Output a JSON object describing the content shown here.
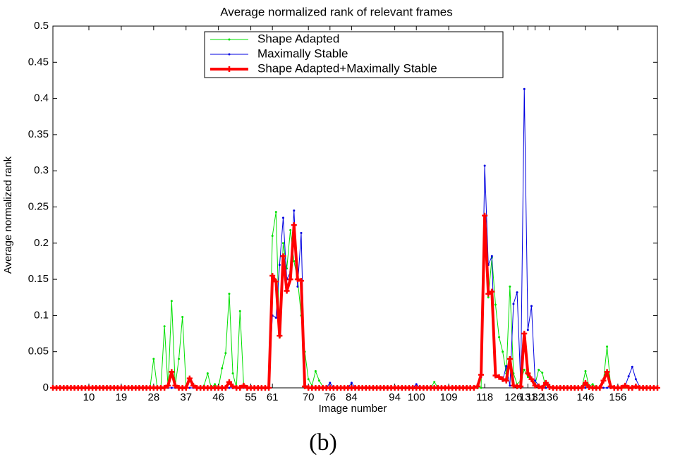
{
  "chart_data": {
    "type": "line",
    "title": "Average normalized rank of relevant frames",
    "xlabel": "Image number",
    "ylabel": "Average normalized rank",
    "caption": "(b)",
    "legend": "upper center",
    "x": [
      0,
      1,
      2,
      3,
      4,
      5,
      6,
      7,
      8,
      9,
      10,
      11,
      12,
      13,
      14,
      15,
      16,
      17,
      18,
      19,
      20,
      21,
      22,
      23,
      24,
      25,
      26,
      27,
      28,
      29,
      30,
      31,
      32,
      33,
      34,
      35,
      36,
      37,
      38,
      39,
      40,
      41,
      42,
      43,
      44,
      45,
      46,
      47,
      48,
      49,
      50,
      51,
      52,
      53,
      54,
      55,
      56,
      57,
      58,
      59,
      60,
      61,
      62,
      63,
      64,
      65,
      66,
      67,
      68,
      69,
      70,
      71,
      72,
      73,
      74,
      75,
      76,
      77,
      78,
      79,
      80,
      81,
      82,
      83,
      84,
      85,
      86,
      87,
      88,
      89,
      90,
      91,
      92,
      93,
      94,
      95,
      96,
      97,
      98,
      99,
      100,
      101,
      102,
      103,
      104,
      105,
      106,
      107,
      108,
      109,
      110,
      111,
      112,
      113,
      114,
      115,
      116,
      117,
      118,
      119,
      120,
      121,
      122,
      123,
      124,
      125,
      126,
      127,
      128,
      129,
      130,
      131,
      132,
      133,
      134,
      135,
      136,
      137,
      138,
      139,
      140,
      141,
      142,
      143,
      144,
      145,
      146,
      147,
      148,
      149,
      150,
      151,
      152,
      153,
      154,
      155,
      156,
      157,
      158,
      159,
      160,
      161,
      162,
      163,
      164,
      165,
      166,
      167,
      168
    ],
    "series": [
      {
        "name": "Shape Adapted",
        "color": "#00e000",
        "width": 1,
        "marker": "dot",
        "values": [
          0,
          0,
          0,
          0,
          0,
          0,
          0,
          0,
          0,
          0,
          0,
          0,
          0,
          0,
          0,
          0,
          0,
          0,
          0,
          0,
          0,
          0,
          0,
          0,
          0,
          0,
          0,
          0,
          0.04,
          0,
          0,
          0.085,
          0,
          0.12,
          0.003,
          0.04,
          0.098,
          0.003,
          0.01,
          0.005,
          0,
          0,
          0.003,
          0.02,
          0,
          0.005,
          0,
          0.027,
          0.048,
          0.13,
          0.02,
          0,
          0.106,
          0.005,
          0,
          0,
          0,
          0,
          0,
          0,
          0,
          0.21,
          0.243,
          0.07,
          0.2,
          0.165,
          0.218,
          0.175,
          0.15,
          0.1,
          0.05,
          0.012,
          0.003,
          0.023,
          0.01,
          0.002,
          0,
          0,
          0,
          0,
          0,
          0,
          0,
          0,
          0,
          0,
          0,
          0,
          0,
          0,
          0,
          0,
          0,
          0,
          0,
          0,
          0,
          0,
          0,
          0,
          0,
          0,
          0,
          0,
          0,
          0,
          0.008,
          0,
          0,
          0,
          0,
          0,
          0,
          0,
          0,
          0,
          0,
          0,
          0,
          0,
          0.237,
          0.125,
          0.18,
          0.115,
          0.07,
          0.05,
          0.02,
          0.14,
          0.02,
          0.005,
          0.01,
          0.025,
          0.015,
          0.012,
          0.005,
          0.025,
          0.021,
          0,
          0,
          0,
          0,
          0,
          0,
          0,
          0,
          0,
          0,
          0,
          0.023,
          0.002,
          0.005,
          0,
          0,
          0.01,
          0.057,
          0.003,
          0,
          0,
          0,
          0,
          0,
          0,
          0,
          0,
          0,
          0,
          0,
          0,
          0
        ]
      },
      {
        "name": "Maximally Stable",
        "color": "#0000e0",
        "width": 1,
        "marker": "dot",
        "values": [
          0,
          0,
          0,
          0,
          0,
          0,
          0,
          0,
          0,
          0,
          0,
          0,
          0,
          0,
          0,
          0,
          0,
          0,
          0,
          0,
          0,
          0,
          0,
          0,
          0,
          0,
          0,
          0,
          0,
          0,
          0,
          0,
          0,
          0,
          0,
          0,
          0,
          0,
          0,
          0,
          0,
          0,
          0,
          0,
          0,
          0,
          0,
          0,
          0,
          0,
          0,
          0,
          0,
          0,
          0,
          0,
          0,
          0,
          0,
          0,
          0,
          0.1,
          0.097,
          0.17,
          0.235,
          0.15,
          0.16,
          0.245,
          0.14,
          0.214,
          0.005,
          0,
          0,
          0,
          0,
          0,
          0,
          0.007,
          0,
          0,
          0,
          0,
          0,
          0.007,
          0,
          0,
          0,
          0,
          0,
          0,
          0,
          0,
          0,
          0,
          0,
          0,
          0,
          0,
          0,
          0,
          0,
          0.005,
          0,
          0,
          0,
          0,
          0,
          0,
          0,
          0,
          0,
          0,
          0,
          0,
          0,
          0,
          0,
          0,
          0,
          0.015,
          0.307,
          0.17,
          0.182,
          0.015,
          0.015,
          0.01,
          0.03,
          0.003,
          0.116,
          0.132,
          0.005,
          0.413,
          0.08,
          0.113,
          0.01,
          0.003,
          0,
          0,
          0,
          0,
          0,
          0,
          0,
          0,
          0,
          0,
          0,
          0,
          0,
          0,
          0,
          0,
          0,
          0,
          0,
          0,
          0,
          0,
          0,
          0.002,
          0.016,
          0.029,
          0.012,
          0.002,
          0,
          0,
          0,
          0,
          0
        ]
      },
      {
        "name": "Shape Adapted+Maximally Stable",
        "color": "#ff0000",
        "width": 4,
        "marker": "plus",
        "values": [
          0,
          0,
          0,
          0,
          0,
          0,
          0,
          0,
          0,
          0,
          0,
          0,
          0,
          0,
          0,
          0,
          0,
          0,
          0,
          0,
          0,
          0,
          0,
          0,
          0,
          0,
          0,
          0,
          0,
          0,
          0,
          0,
          0.003,
          0.022,
          0.003,
          0,
          0,
          0,
          0.013,
          0.003,
          0,
          0,
          0,
          0,
          0,
          0,
          0,
          0,
          0,
          0.008,
          0.002,
          0,
          0,
          0.003,
          0,
          0,
          0,
          0,
          0,
          0,
          0,
          0.155,
          0.147,
          0.072,
          0.182,
          0.134,
          0.15,
          0.225,
          0.15,
          0.148,
          0.002,
          0,
          0,
          0,
          0,
          0,
          0,
          0,
          0,
          0,
          0,
          0,
          0,
          0,
          0,
          0,
          0,
          0,
          0,
          0,
          0,
          0,
          0,
          0,
          0,
          0,
          0,
          0,
          0,
          0,
          0,
          0,
          0,
          0,
          0,
          0,
          0,
          0,
          0,
          0,
          0,
          0,
          0,
          0,
          0,
          0,
          0,
          0,
          0.002,
          0.018,
          0.238,
          0.13,
          0.133,
          0.017,
          0.015,
          0.012,
          0.01,
          0.04,
          0.003,
          0.002,
          0.002,
          0.075,
          0.02,
          0.012,
          0.003,
          0.002,
          0,
          0.007,
          0.001,
          0,
          0,
          0,
          0,
          0,
          0,
          0,
          0,
          0,
          0.007,
          0.001,
          0,
          0,
          0,
          0.01,
          0.022,
          0.002,
          0,
          0,
          0,
          0.003,
          0,
          0,
          0.002,
          0,
          0,
          0,
          0,
          0,
          0
        ]
      }
    ],
    "xlim": [
      0,
      168
    ],
    "xticks": [
      {
        "value": 10,
        "label": "10"
      },
      {
        "value": 19,
        "label": "19"
      },
      {
        "value": 28,
        "label": "28"
      },
      {
        "value": 37,
        "label": "37"
      },
      {
        "value": 46,
        "label": "46"
      },
      {
        "value": 55,
        "label": "55"
      },
      {
        "value": 61,
        "label": "61"
      },
      {
        "value": 71,
        "label": "70"
      },
      {
        "value": 77,
        "label": "76"
      },
      {
        "value": 83,
        "label": "84"
      },
      {
        "value": 95,
        "label": "94"
      },
      {
        "value": 101,
        "label": "100"
      },
      {
        "value": 110,
        "label": "109"
      },
      {
        "value": 120,
        "label": "118"
      },
      {
        "value": 128,
        "label": "126"
      },
      {
        "value": 132,
        "label": "131"
      },
      {
        "value": 134,
        "label": "132"
      },
      {
        "value": 138,
        "label": "136"
      },
      {
        "value": 148,
        "label": "146"
      },
      {
        "value": 157,
        "label": "156"
      }
    ],
    "ylim": [
      0,
      0.5
    ],
    "yticks": [
      0,
      0.05,
      0.1,
      0.15,
      0.2,
      0.25,
      0.3,
      0.35,
      0.4,
      0.45,
      0.5
    ],
    "grid": false
  }
}
